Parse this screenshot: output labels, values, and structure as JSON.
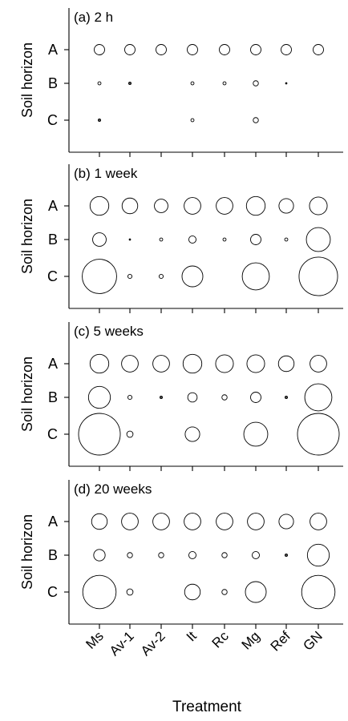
{
  "figure": {
    "xlabel": "Treatment",
    "ylabel": "Soil horizon"
  },
  "chart_data": {
    "type": "scatter",
    "encoding": "bubble",
    "categories": [
      "Ms",
      "Av-1",
      "Av-2",
      "It",
      "Rc",
      "Mg",
      "Ref",
      "GN"
    ],
    "rows": [
      "A",
      "B",
      "C"
    ],
    "panels": [
      {
        "title": "(a) 2 h",
        "sizes": {
          "A": [
            1.0,
            1.0,
            1.0,
            1.0,
            1.0,
            1.0,
            1.0,
            1.0
          ],
          "B": [
            0.3,
            0.2,
            0,
            0.3,
            0.3,
            0.5,
            0.1,
            0
          ],
          "C": [
            0.2,
            0,
            0,
            0.3,
            0,
            0.5,
            0,
            0
          ]
        }
      },
      {
        "title": "(b) 1 week",
        "sizes": {
          "A": [
            1.8,
            1.5,
            1.3,
            1.6,
            1.6,
            1.8,
            1.4,
            1.7
          ],
          "B": [
            1.3,
            0.1,
            0.3,
            0.7,
            0.3,
            1.0,
            0.3,
            2.3
          ],
          "C": [
            3.3,
            0.4,
            0.4,
            2.0,
            0,
            2.6,
            0,
            3.7
          ]
        }
      },
      {
        "title": "(c) 5 weeks",
        "sizes": {
          "A": [
            1.8,
            1.6,
            1.6,
            1.8,
            1.7,
            1.7,
            1.5,
            1.6
          ],
          "B": [
            2.1,
            0.4,
            0.2,
            0.9,
            0.5,
            1.0,
            0.2,
            2.6
          ],
          "C": [
            4.0,
            0.6,
            0,
            1.4,
            0,
            2.3,
            0,
            4.0
          ]
        }
      },
      {
        "title": "(d) 20 weeks",
        "sizes": {
          "A": [
            1.5,
            1.6,
            1.6,
            1.6,
            1.6,
            1.6,
            1.4,
            1.6
          ],
          "B": [
            1.1,
            0.5,
            0.5,
            0.7,
            0.5,
            0.7,
            0.2,
            2.1
          ],
          "C": [
            3.2,
            0.6,
            0,
            1.5,
            0.5,
            2.0,
            0,
            3.2
          ]
        }
      }
    ],
    "legend": "none",
    "grid": false
  }
}
